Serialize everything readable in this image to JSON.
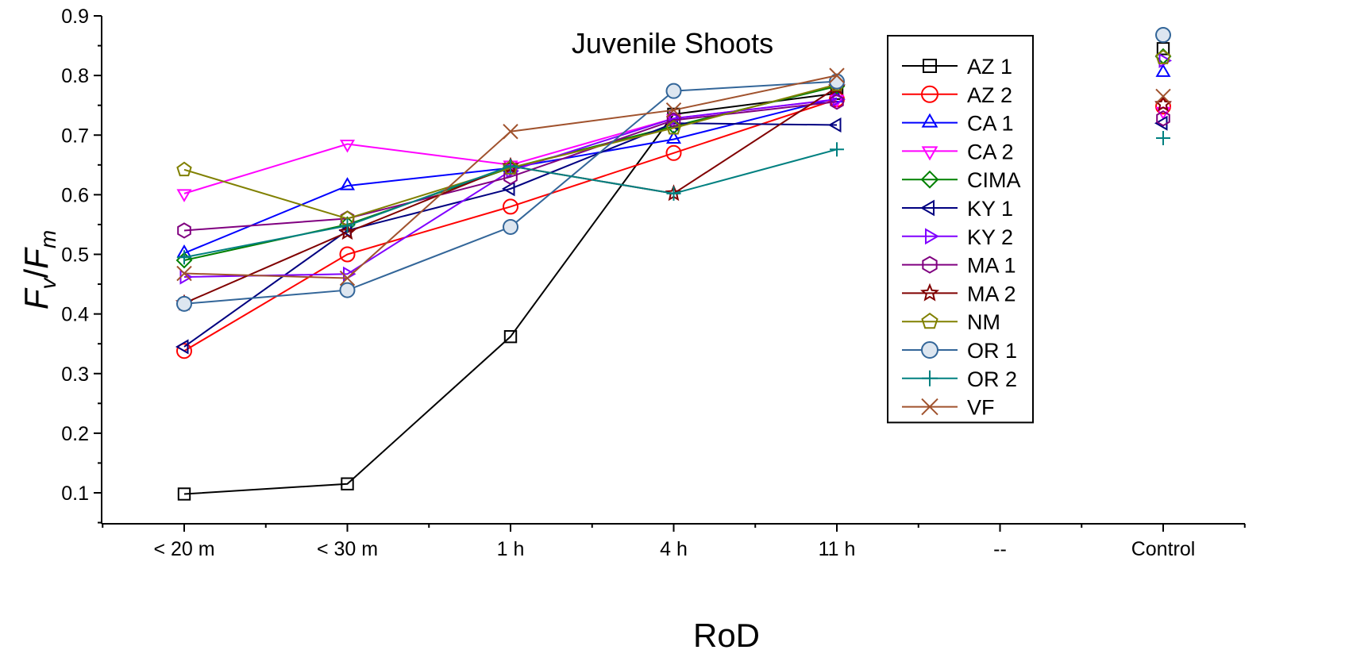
{
  "chart_data": {
    "type": "line",
    "title": "Juvenile Shoots",
    "xlabel": "RoD",
    "ylabel": {
      "F1": "F",
      "sub1": "v",
      "slash": "/",
      "F2": "F",
      "sub2": "m"
    },
    "categories": [
      "< 20 m",
      "< 30 m",
      "1 h",
      "4 h",
      "11 h",
      "--",
      "Control"
    ],
    "ylim": [
      0.05,
      0.9
    ],
    "yticks": [
      "0.1",
      "0.2",
      "0.3",
      "0.4",
      "0.5",
      "0.6",
      "0.7",
      "0.8",
      "0.9"
    ],
    "grid": false,
    "legend_position": "top-right",
    "series": [
      {
        "name": "AZ 1",
        "color": "#000000",
        "marker": "square",
        "values": [
          0.098,
          0.115,
          0.362,
          0.735,
          0.77,
          null,
          0.845
        ]
      },
      {
        "name": "AZ 2",
        "color": "#ff0000",
        "marker": "circle",
        "values": [
          0.338,
          0.5,
          0.58,
          0.67,
          0.76,
          null,
          0.748
        ]
      },
      {
        "name": "CA 1",
        "color": "#0000ff",
        "marker": "triangle-up",
        "values": [
          0.502,
          0.615,
          0.645,
          0.693,
          0.762,
          null,
          0.805
        ]
      },
      {
        "name": "CA 2",
        "color": "#ff00ff",
        "marker": "triangle-down",
        "values": [
          0.602,
          0.685,
          0.65,
          0.728,
          0.76,
          null,
          0.74
        ]
      },
      {
        "name": "CIMA",
        "color": "#008000",
        "marker": "diamond",
        "values": [
          0.49,
          0.55,
          0.645,
          0.715,
          0.782,
          null,
          0.832
        ]
      },
      {
        "name": "KY 1",
        "color": "#000080",
        "marker": "triangle-left",
        "values": [
          0.345,
          0.54,
          0.61,
          0.72,
          0.717,
          null,
          0.72
        ]
      },
      {
        "name": "KY 2",
        "color": "#8000ff",
        "marker": "triangle-right",
        "values": [
          0.462,
          0.467,
          0.64,
          0.728,
          0.76,
          null,
          0.825
        ]
      },
      {
        "name": "MA 1",
        "color": "#800080",
        "marker": "hexagon",
        "values": [
          0.54,
          0.56,
          0.63,
          0.725,
          0.756,
          null,
          0.728
        ]
      },
      {
        "name": "MA 2",
        "color": "#800000",
        "marker": "star",
        "values": [
          0.418,
          0.537,
          0.648,
          0.602,
          0.78,
          null,
          0.752
        ]
      },
      {
        "name": "NM",
        "color": "#808000",
        "marker": "pentagon",
        "values": [
          0.642,
          0.56,
          0.645,
          0.712,
          0.785,
          null,
          0.83
        ]
      },
      {
        "name": "OR 1",
        "color": "#336699",
        "marker": "circle-filled",
        "values": [
          0.417,
          0.44,
          0.546,
          0.774,
          0.79,
          null,
          0.868
        ]
      },
      {
        "name": "OR 2",
        "color": "#008080",
        "marker": "plus",
        "values": [
          0.495,
          0.548,
          0.648,
          0.602,
          0.676,
          null,
          0.695
        ]
      },
      {
        "name": "VF",
        "color": "#a0522d",
        "marker": "cross",
        "values": [
          0.468,
          0.46,
          0.706,
          0.742,
          0.8,
          null,
          0.765
        ]
      }
    ]
  }
}
